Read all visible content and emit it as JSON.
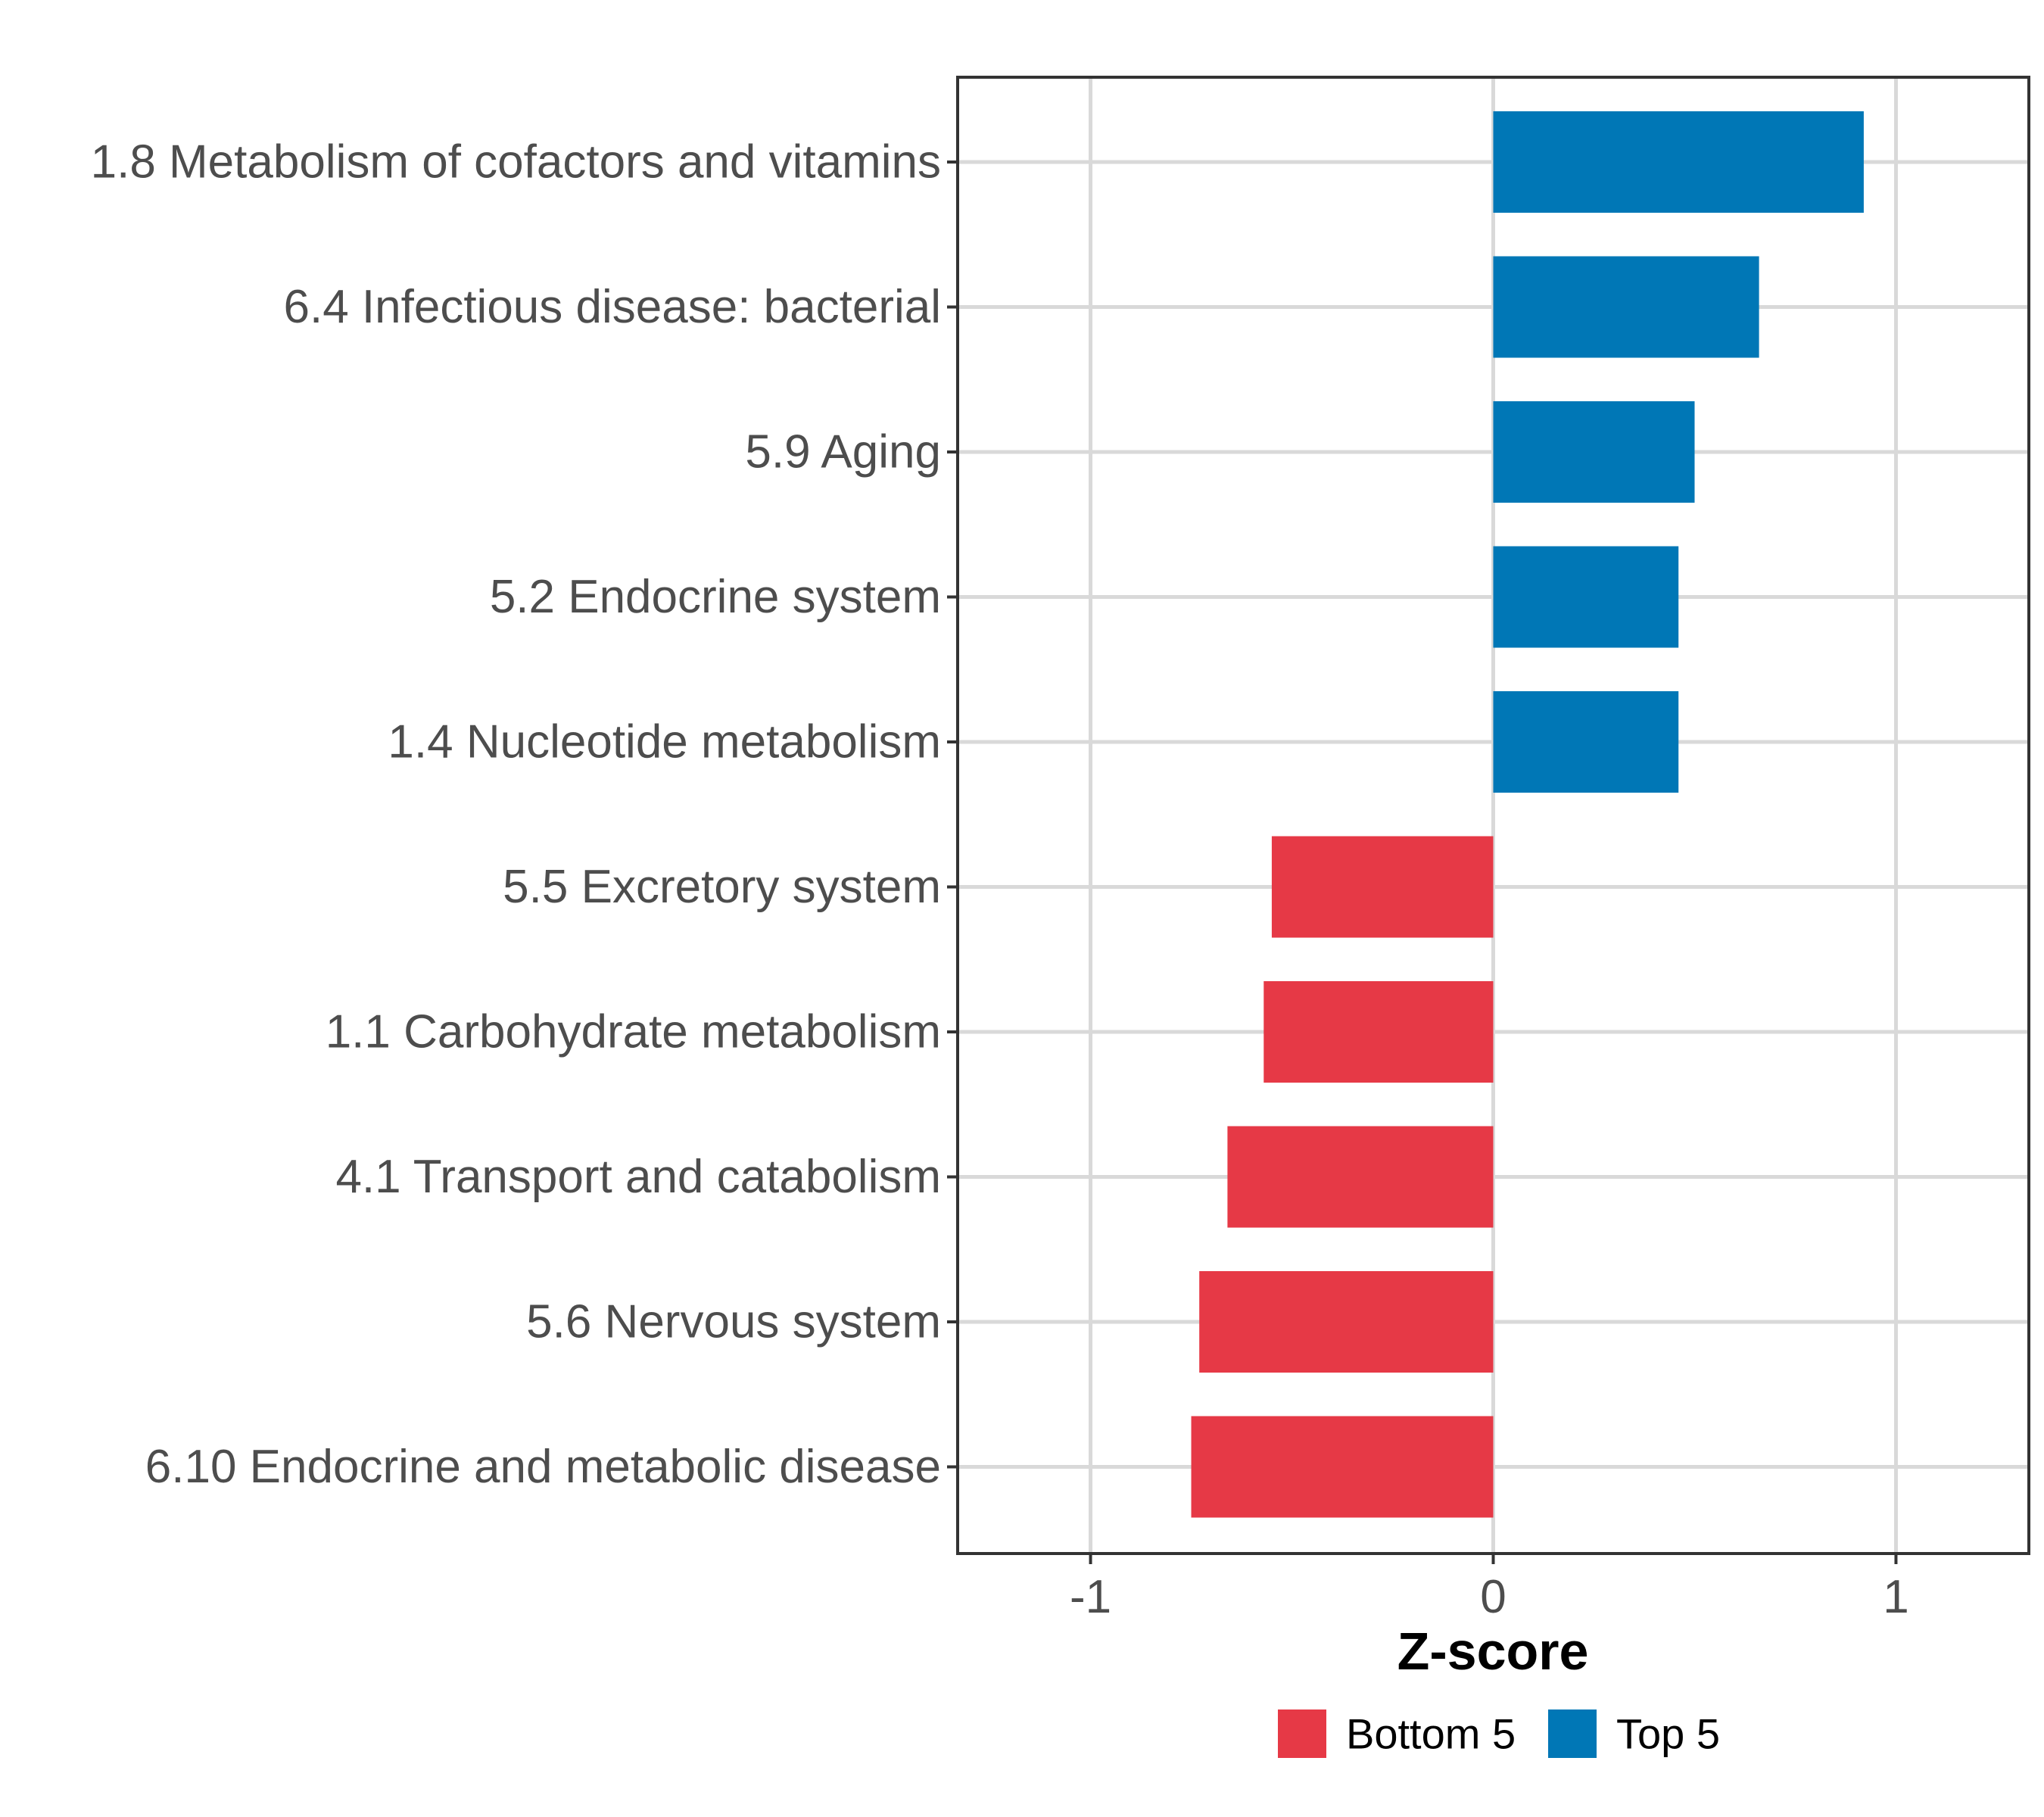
{
  "chart_data": {
    "type": "bar",
    "orientation": "horizontal",
    "title": "",
    "xlabel": "Z-score",
    "ylabel": "",
    "xlim": [
      -1.33,
      1.33
    ],
    "xticks": [
      -1,
      0,
      1
    ],
    "xtick_labels": [
      "-1",
      "0",
      "1"
    ],
    "grid": true,
    "legend_position": "bottom",
    "categories": [
      "1.8 Metabolism of cofactors and vitamins",
      "6.4 Infectious disease: bacterial",
      "5.9 Aging",
      "5.2 Endocrine system",
      "1.4 Nucleotide metabolism",
      "5.5 Excretory system",
      "1.1 Carbohydrate metabolism",
      "4.1 Transport and catabolism",
      "5.6 Nervous system",
      "6.10 Endocrine and metabolic disease"
    ],
    "values": [
      0.92,
      0.66,
      0.5,
      0.46,
      0.46,
      -0.55,
      -0.57,
      -0.66,
      -0.73,
      -0.75
    ],
    "groups": [
      "Top 5",
      "Top 5",
      "Top 5",
      "Top 5",
      "Top 5",
      "Bottom 5",
      "Bottom 5",
      "Bottom 5",
      "Bottom 5",
      "Bottom 5"
    ],
    "legend": [
      {
        "name": "Bottom 5",
        "color": "#e63946"
      },
      {
        "name": "Top 5",
        "color": "#0077b6"
      }
    ]
  }
}
